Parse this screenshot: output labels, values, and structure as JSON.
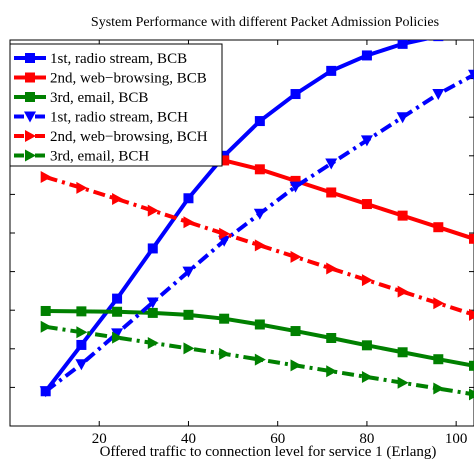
{
  "chart_data": {
    "type": "line",
    "title": "System Performance with different Packet Admission Policies",
    "xlabel": "Offered traffic to connection level for service 1 (Erlang)",
    "ylabel": "",
    "xlim": [
      0,
      104
    ],
    "ylim": [
      0,
      100
    ],
    "x_ticks": [
      20,
      40,
      60,
      80,
      100
    ],
    "grid": false,
    "legend_position": "top-left",
    "x": [
      8,
      16,
      24,
      32,
      40,
      48,
      56,
      64,
      72,
      80,
      88,
      96,
      104
    ],
    "series": [
      {
        "name": "1st, radio stream, BCB",
        "color": "#0000ff",
        "style": "solid",
        "marker": "square",
        "values": [
          9,
          21,
          33,
          46,
          59,
          70,
          79,
          86,
          92,
          96,
          99,
          101,
          102.5
        ]
      },
      {
        "name": "2nd, web−browsing, BCB",
        "color": "#ff0000",
        "style": "solid",
        "marker": "square",
        "values": [
          74,
          73.8,
          73.3,
          72.2,
          70.8,
          68.8,
          66.5,
          63.5,
          60.5,
          57.5,
          54.5,
          51.5,
          48.5
        ]
      },
      {
        "name": "3rd, email, BCB",
        "color": "#008000",
        "style": "solid",
        "marker": "square",
        "values": [
          29.8,
          29.7,
          29.6,
          29.3,
          28.8,
          27.8,
          26.3,
          24.6,
          22.8,
          20.9,
          19.1,
          17.3,
          15.6
        ]
      },
      {
        "name": "1st, radio stream, BCH",
        "color": "#0000ff",
        "style": "dashdot",
        "marker": "triangle-down",
        "values": [
          9,
          16,
          24,
          32,
          40,
          48,
          55,
          62,
          68,
          74,
          80,
          86,
          91
        ]
      },
      {
        "name": "2nd, web−browsing, BCH",
        "color": "#ff0000",
        "style": "dashdot",
        "marker": "triangle-right",
        "values": [
          64.5,
          61.7,
          58.8,
          55.8,
          52.8,
          49.8,
          46.8,
          43.8,
          40.8,
          37.8,
          34.8,
          31.8,
          28.8
        ]
      },
      {
        "name": "3rd, email, BCH",
        "color": "#008000",
        "style": "dashdot",
        "marker": "triangle-right",
        "values": [
          25.7,
          24.3,
          22.9,
          21.5,
          20.1,
          18.7,
          17.2,
          15.7,
          14.2,
          12.7,
          11.2,
          9.7,
          8.2
        ]
      }
    ]
  }
}
